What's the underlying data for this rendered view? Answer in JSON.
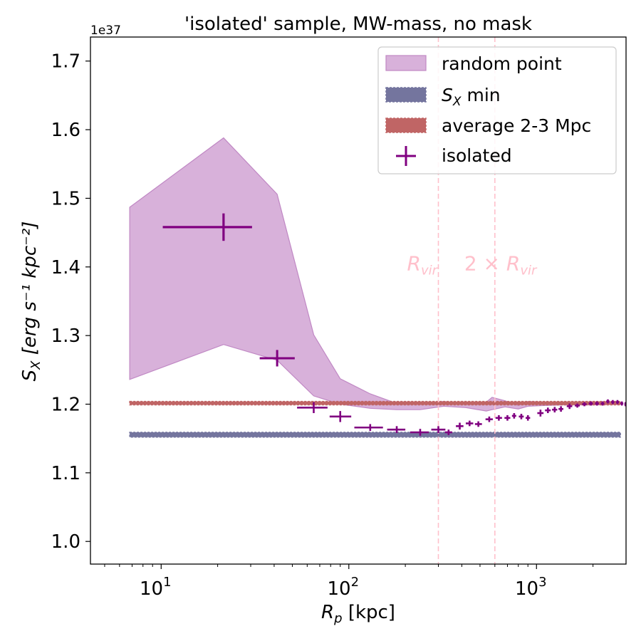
{
  "chart_data": {
    "type": "line",
    "title": "'isolated' sample, MW-mass, no mask",
    "xlabel_symbol": "R",
    "xlabel_sub": "p",
    "xlabel_unit": "[kpc]",
    "ylabel_symbol": "S",
    "ylabel_sub": "X",
    "ylabel_unit": "[erg s⁻¹ kpc⁻²]",
    "x_scale": "log",
    "xlim": [
      4.2,
      3000
    ],
    "ylim": [
      0.967,
      1.735
    ],
    "y_offset_text": "1e37",
    "y_ticks": [
      1.0,
      1.1,
      1.2,
      1.3,
      1.4,
      1.5,
      1.6,
      1.7
    ],
    "y_tick_labels": [
      "1.0",
      "1.1",
      "1.2",
      "1.3",
      "1.4",
      "1.5",
      "1.6",
      "1.7"
    ],
    "x_major_ticks": [
      10,
      100,
      1000
    ],
    "x_tick_base": "10",
    "x_tick_exponents": [
      "1",
      "2",
      "3"
    ],
    "legend_position": "upper-right",
    "series": [
      {
        "name": "random point",
        "kind": "band",
        "color": "#d8b1da",
        "edge_color": "#c088c4",
        "x": [
          6.8,
          21.5,
          41.5,
          65,
          90,
          130,
          180,
          240,
          320,
          420,
          540,
          580,
          680,
          800,
          900,
          1100,
          1400,
          2000,
          2800
        ],
        "upper": [
          1.487,
          1.588,
          1.506,
          1.301,
          1.237,
          1.215,
          1.201,
          1.2,
          1.204,
          1.2,
          1.203,
          1.21,
          1.205,
          1.198,
          1.204,
          1.203,
          1.202,
          1.202,
          1.203
        ],
        "lower": [
          1.236,
          1.287,
          1.264,
          1.212,
          1.2,
          1.194,
          1.192,
          1.192,
          1.197,
          1.195,
          1.19,
          1.192,
          1.196,
          1.193,
          1.197,
          1.198,
          1.199,
          1.199,
          1.2
        ]
      },
      {
        "name": "S_X min",
        "label_symbol": "S",
        "label_sub": "X",
        "label_rest": " min",
        "kind": "hband",
        "color": "#74759e",
        "y_low": 1.152,
        "y_high": 1.159,
        "x_range": [
          6.8,
          2800
        ]
      },
      {
        "name": "average 2-3 Mpc",
        "kind": "hband",
        "color": "#c06565",
        "y_low": 1.199,
        "y_high": 1.204,
        "x_range": [
          6.8,
          2800
        ]
      },
      {
        "name": "isolated",
        "kind": "errorbar",
        "color": "#800080",
        "points": [
          {
            "x": 21.5,
            "y": 1.458,
            "xlo": 10.2,
            "xhi": 30.5,
            "yerr": 0.02
          },
          {
            "x": 41.5,
            "y": 1.267,
            "xlo": 33.5,
            "xhi": 51.5,
            "yerr": 0.012
          },
          {
            "x": 65,
            "y": 1.195,
            "xlo": 53,
            "xhi": 77,
            "yerr": 0.008
          },
          {
            "x": 90,
            "y": 1.182,
            "xlo": 79,
            "xhi": 103,
            "yerr": 0.008
          },
          {
            "x": 130,
            "y": 1.166,
            "xlo": 107,
            "xhi": 152,
            "yerr": 0.005
          },
          {
            "x": 180,
            "y": 1.163,
            "xlo": 160,
            "xhi": 200,
            "yerr": 0.005
          },
          {
            "x": 240,
            "y": 1.159,
            "xlo": 212,
            "xhi": 267,
            "yerr": 0.005
          },
          {
            "x": 300,
            "y": 1.163,
            "xlo": 275,
            "xhi": 327,
            "yerr": 0.005
          },
          {
            "x": 340,
            "y": 1.159,
            "xlo": 325,
            "xhi": 356,
            "yerr": 0.004
          },
          {
            "x": 390,
            "y": 1.168,
            "xlo": 372,
            "xhi": 408,
            "yerr": 0.005
          },
          {
            "x": 440,
            "y": 1.172,
            "xlo": 420,
            "xhi": 460,
            "yerr": 0.004
          },
          {
            "x": 490,
            "y": 1.171,
            "xlo": 470,
            "xhi": 512,
            "yerr": 0.004
          },
          {
            "x": 560,
            "y": 1.178,
            "xlo": 535,
            "xhi": 585,
            "yerr": 0.004
          },
          {
            "x": 630,
            "y": 1.18,
            "xlo": 605,
            "xhi": 655,
            "yerr": 0.004
          },
          {
            "x": 700,
            "y": 1.18,
            "xlo": 675,
            "xhi": 725,
            "yerr": 0.004
          },
          {
            "x": 760,
            "y": 1.183,
            "xlo": 740,
            "xhi": 780,
            "yerr": 0.004
          },
          {
            "x": 830,
            "y": 1.182,
            "xlo": 805,
            "xhi": 855,
            "yerr": 0.004
          },
          {
            "x": 900,
            "y": 1.18,
            "xlo": 875,
            "xhi": 925,
            "yerr": 0.004
          },
          {
            "x": 1050,
            "y": 1.187,
            "xlo": 1010,
            "xhi": 1090,
            "yerr": 0.005
          },
          {
            "x": 1150,
            "y": 1.191,
            "xlo": 1110,
            "xhi": 1190,
            "yerr": 0.004
          },
          {
            "x": 1250,
            "y": 1.192,
            "xlo": 1210,
            "xhi": 1290,
            "yerr": 0.004
          },
          {
            "x": 1350,
            "y": 1.193,
            "xlo": 1310,
            "xhi": 1390,
            "yerr": 0.004
          },
          {
            "x": 1500,
            "y": 1.197,
            "xlo": 1450,
            "xhi": 1550,
            "yerr": 0.004
          },
          {
            "x": 1650,
            "y": 1.198,
            "xlo": 1600,
            "xhi": 1700,
            "yerr": 0.003
          },
          {
            "x": 1800,
            "y": 1.2,
            "xlo": 1750,
            "xhi": 1850,
            "yerr": 0.003
          },
          {
            "x": 1950,
            "y": 1.201,
            "xlo": 1900,
            "xhi": 2000,
            "yerr": 0.003
          },
          {
            "x": 2100,
            "y": 1.201,
            "xlo": 2050,
            "xhi": 2150,
            "yerr": 0.003
          },
          {
            "x": 2250,
            "y": 1.201,
            "xlo": 2200,
            "xhi": 2300,
            "yerr": 0.003
          },
          {
            "x": 2400,
            "y": 1.204,
            "xlo": 2350,
            "xhi": 2450,
            "yerr": 0.003
          },
          {
            "x": 2550,
            "y": 1.203,
            "xlo": 2500,
            "xhi": 2600,
            "yerr": 0.003
          },
          {
            "x": 2700,
            "y": 1.203,
            "xlo": 2650,
            "xhi": 2750,
            "yerr": 0.003
          },
          {
            "x": 2850,
            "y": 1.201,
            "xlo": 2800,
            "xhi": 2900,
            "yerr": 0.003
          },
          {
            "x": 2980,
            "y": 1.2,
            "xlo": 2940,
            "xhi": 3000,
            "yerr": 0.003
          }
        ]
      }
    ],
    "vlines": [
      {
        "x": 300,
        "label_symbol": "R",
        "label_sub": "vir",
        "label_prefix": "",
        "color": "#ffc0cb"
      },
      {
        "x": 600,
        "label_symbol": "R",
        "label_sub": "vir",
        "label_prefix": "2 × ",
        "color": "#ffc0cb"
      }
    ],
    "annotation_y": 1.395
  }
}
